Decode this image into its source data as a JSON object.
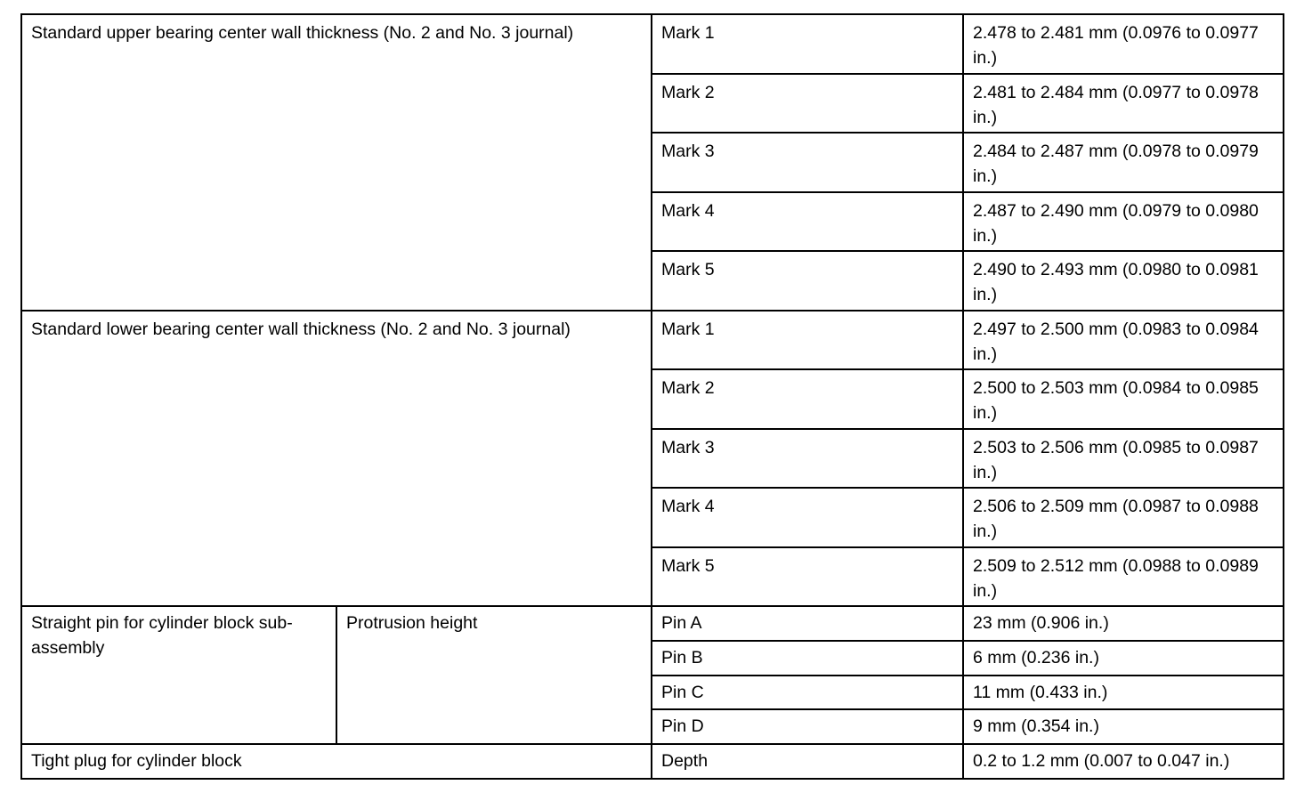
{
  "sections": [
    {
      "item": "Standard upper bearing center wall thickness (No. 2 and No. 3 journal)",
      "rows": [
        {
          "label": "Mark 1",
          "value": "2.478 to 2.481 mm (0.0976 to 0.0977 in.)"
        },
        {
          "label": "Mark 2",
          "value": "2.481 to 2.484 mm (0.0977 to 0.0978 in.)"
        },
        {
          "label": "Mark 3",
          "value": "2.484 to 2.487 mm (0.0978 to 0.0979 in.)"
        },
        {
          "label": "Mark 4",
          "value": "2.487 to 2.490 mm (0.0979 to 0.0980 in.)"
        },
        {
          "label": "Mark 5",
          "value": "2.490 to 2.493 mm (0.0980 to 0.0981 in.)"
        }
      ]
    },
    {
      "item": "Standard lower bearing center wall thickness (No. 2 and No. 3 journal)",
      "rows": [
        {
          "label": "Mark 1",
          "value": "2.497 to 2.500 mm (0.0983 to 0.0984 in.)"
        },
        {
          "label": "Mark 2",
          "value": "2.500 to 2.503 mm (0.0984 to 0.0985 in.)"
        },
        {
          "label": "Mark 3",
          "value": "2.503 to 2.506 mm (0.0985 to 0.0987 in.)"
        },
        {
          "label": "Mark 4",
          "value": "2.506 to 2.509 mm (0.0987 to 0.0988 in.)"
        },
        {
          "label": "Mark 5",
          "value": "2.509 to 2.512 mm (0.0988 to 0.0989 in.)"
        }
      ]
    },
    {
      "item": "Straight pin for cylinder block sub-assembly",
      "subitem": "Protrusion height",
      "rows": [
        {
          "label": "Pin A",
          "value": "23 mm (0.906 in.)"
        },
        {
          "label": "Pin B",
          "value": "6 mm (0.236 in.)"
        },
        {
          "label": "Pin C",
          "value": "11 mm (0.433 in.)"
        },
        {
          "label": "Pin D",
          "value": "9 mm (0.354 in.)"
        }
      ]
    },
    {
      "item": "Tight plug for cylinder block",
      "rows": [
        {
          "label": "Depth",
          "value": "0.2 to 1.2 mm (0.007 to 0.047 in.)"
        }
      ]
    }
  ]
}
